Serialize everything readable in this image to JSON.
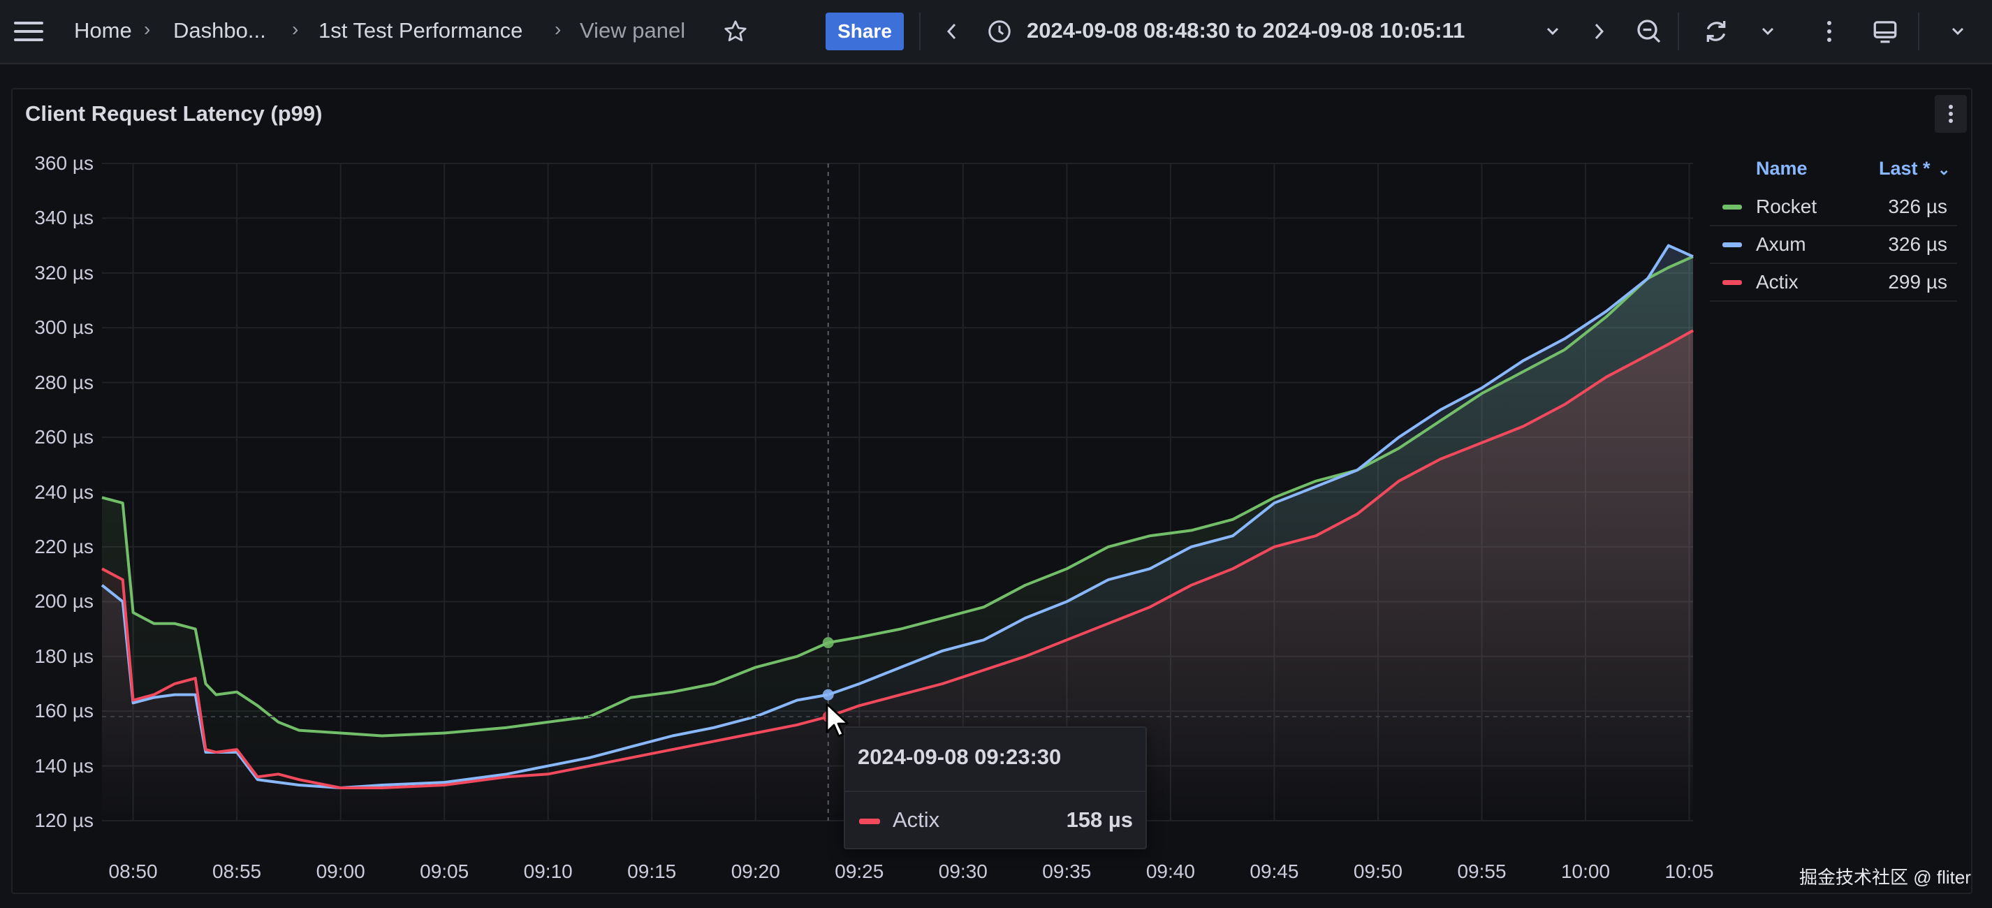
{
  "breadcrumb": {
    "items": [
      "Home",
      "Dashbo...",
      "1st Test Performance",
      "View panel"
    ]
  },
  "toolbar": {
    "share_label": "Share",
    "time_range": "2024-09-08 08:48:30 to 2024-09-08 10:05:11",
    "icons": [
      "menu-icon",
      "star-icon",
      "chevron-left-icon",
      "clock-icon",
      "chevron-down-icon",
      "chevron-right-icon",
      "zoom-out-icon",
      "refresh-icon",
      "chevron-down-icon",
      "kebab-icon",
      "tv-icon",
      "chevron-down-icon"
    ]
  },
  "panel": {
    "title": "Client Request Latency (p99)"
  },
  "chart_data": {
    "type": "line",
    "title": "Client Request Latency (p99)",
    "xlabel": "",
    "ylabel": "",
    "unit": "µs",
    "ylim": [
      120,
      360
    ],
    "xlim": [
      "08:48:30",
      "10:05:11"
    ],
    "grid": true,
    "y_ticks": [
      "360 µs",
      "340 µs",
      "320 µs",
      "300 µs",
      "280 µs",
      "260 µs",
      "240 µs",
      "220 µs",
      "200 µs",
      "180 µs",
      "160 µs",
      "140 µs",
      "120 µs"
    ],
    "x_ticks": [
      "08:50",
      "08:55",
      "09:00",
      "09:05",
      "09:10",
      "09:15",
      "09:20",
      "09:25",
      "09:30",
      "09:35",
      "09:40",
      "09:45",
      "09:50",
      "09:55",
      "10:00",
      "10:05"
    ],
    "x": [
      "08:48:30",
      "08:49:30",
      "08:50:00",
      "08:51:00",
      "08:52:00",
      "08:53:00",
      "08:53:30",
      "08:54:00",
      "08:55:00",
      "08:56:00",
      "08:57:00",
      "08:58:00",
      "09:00:00",
      "09:02:00",
      "09:05:00",
      "09:08:00",
      "09:10:00",
      "09:12:00",
      "09:14:00",
      "09:16:00",
      "09:18:00",
      "09:20:00",
      "09:22:00",
      "09:23:30",
      "09:25:00",
      "09:27:00",
      "09:29:00",
      "09:31:00",
      "09:33:00",
      "09:35:00",
      "09:37:00",
      "09:39:00",
      "09:41:00",
      "09:43:00",
      "09:45:00",
      "09:47:00",
      "09:49:00",
      "09:51:00",
      "09:53:00",
      "09:55:00",
      "09:57:00",
      "09:59:00",
      "10:01:00",
      "10:03:00",
      "10:04:00",
      "10:05:11"
    ],
    "series": [
      {
        "name": "Rocket",
        "color": "#73bf69",
        "values": [
          238,
          236,
          196,
          192,
          192,
          190,
          170,
          166,
          167,
          162,
          156,
          153,
          152,
          151,
          152,
          154,
          156,
          158,
          165,
          167,
          170,
          176,
          180,
          185,
          187,
          190,
          194,
          198,
          206,
          212,
          220,
          224,
          226,
          230,
          238,
          244,
          248,
          256,
          266,
          276,
          284,
          292,
          304,
          318,
          322,
          326
        ]
      },
      {
        "name": "Axum",
        "color": "#8ab8ff",
        "values": [
          206,
          200,
          163,
          165,
          166,
          166,
          145,
          145,
          145,
          135,
          134,
          133,
          132,
          133,
          134,
          137,
          140,
          143,
          147,
          151,
          154,
          158,
          164,
          166,
          170,
          176,
          182,
          186,
          194,
          200,
          208,
          212,
          220,
          224,
          236,
          242,
          248,
          260,
          270,
          278,
          288,
          296,
          306,
          318,
          330,
          326
        ]
      },
      {
        "name": "Actix",
        "color": "#f2495c",
        "values": [
          212,
          208,
          164,
          166,
          170,
          172,
          146,
          145,
          146,
          136,
          137,
          135,
          132,
          132,
          133,
          136,
          137,
          140,
          143,
          146,
          149,
          152,
          155,
          158,
          162,
          166,
          170,
          175,
          180,
          186,
          192,
          198,
          206,
          212,
          220,
          224,
          232,
          244,
          252,
          258,
          264,
          272,
          282,
          290,
          294,
          299
        ]
      }
    ],
    "tooltip": {
      "time": "2024-09-08 09:23:30",
      "series": "Actix",
      "value": "158 µs"
    }
  },
  "legend": {
    "headers": {
      "name": "Name",
      "last": "Last *"
    },
    "rows": [
      {
        "name": "Rocket",
        "value": "326 µs",
        "color": "#73bf69"
      },
      {
        "name": "Axum",
        "value": "326 µs",
        "color": "#8ab8ff"
      },
      {
        "name": "Actix",
        "value": "299 µs",
        "color": "#f2495c"
      }
    ]
  },
  "watermark": "掘金技术社区 @ fliter"
}
